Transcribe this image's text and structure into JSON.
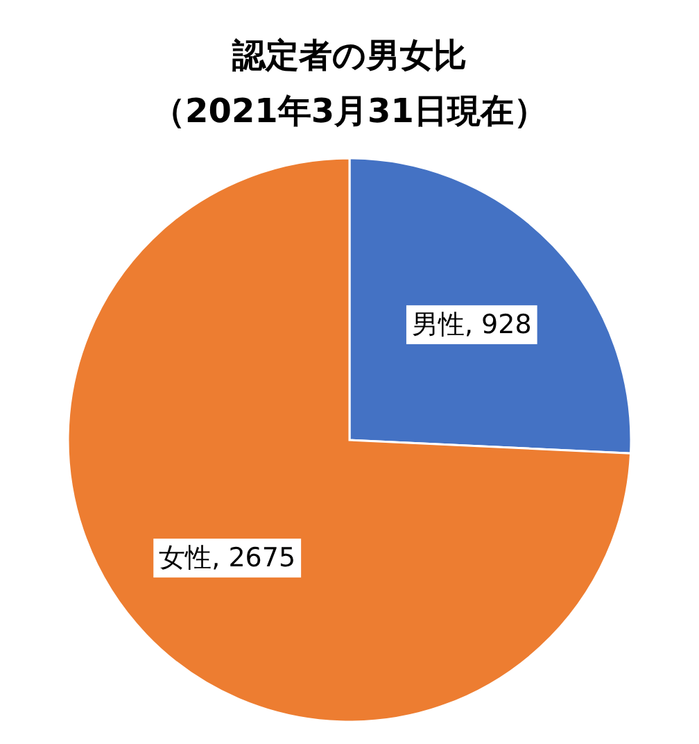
{
  "chart_data": {
    "type": "pie",
    "title": "認定者の男女比",
    "subtitle": "（2021年3月31日現在）",
    "categories": [
      "男性",
      "女性"
    ],
    "values": [
      928,
      2675
    ],
    "value_labels": [
      ", 928",
      ", 2675"
    ],
    "colors": [
      "#4472c4",
      "#ed7d31"
    ],
    "legend": false
  }
}
